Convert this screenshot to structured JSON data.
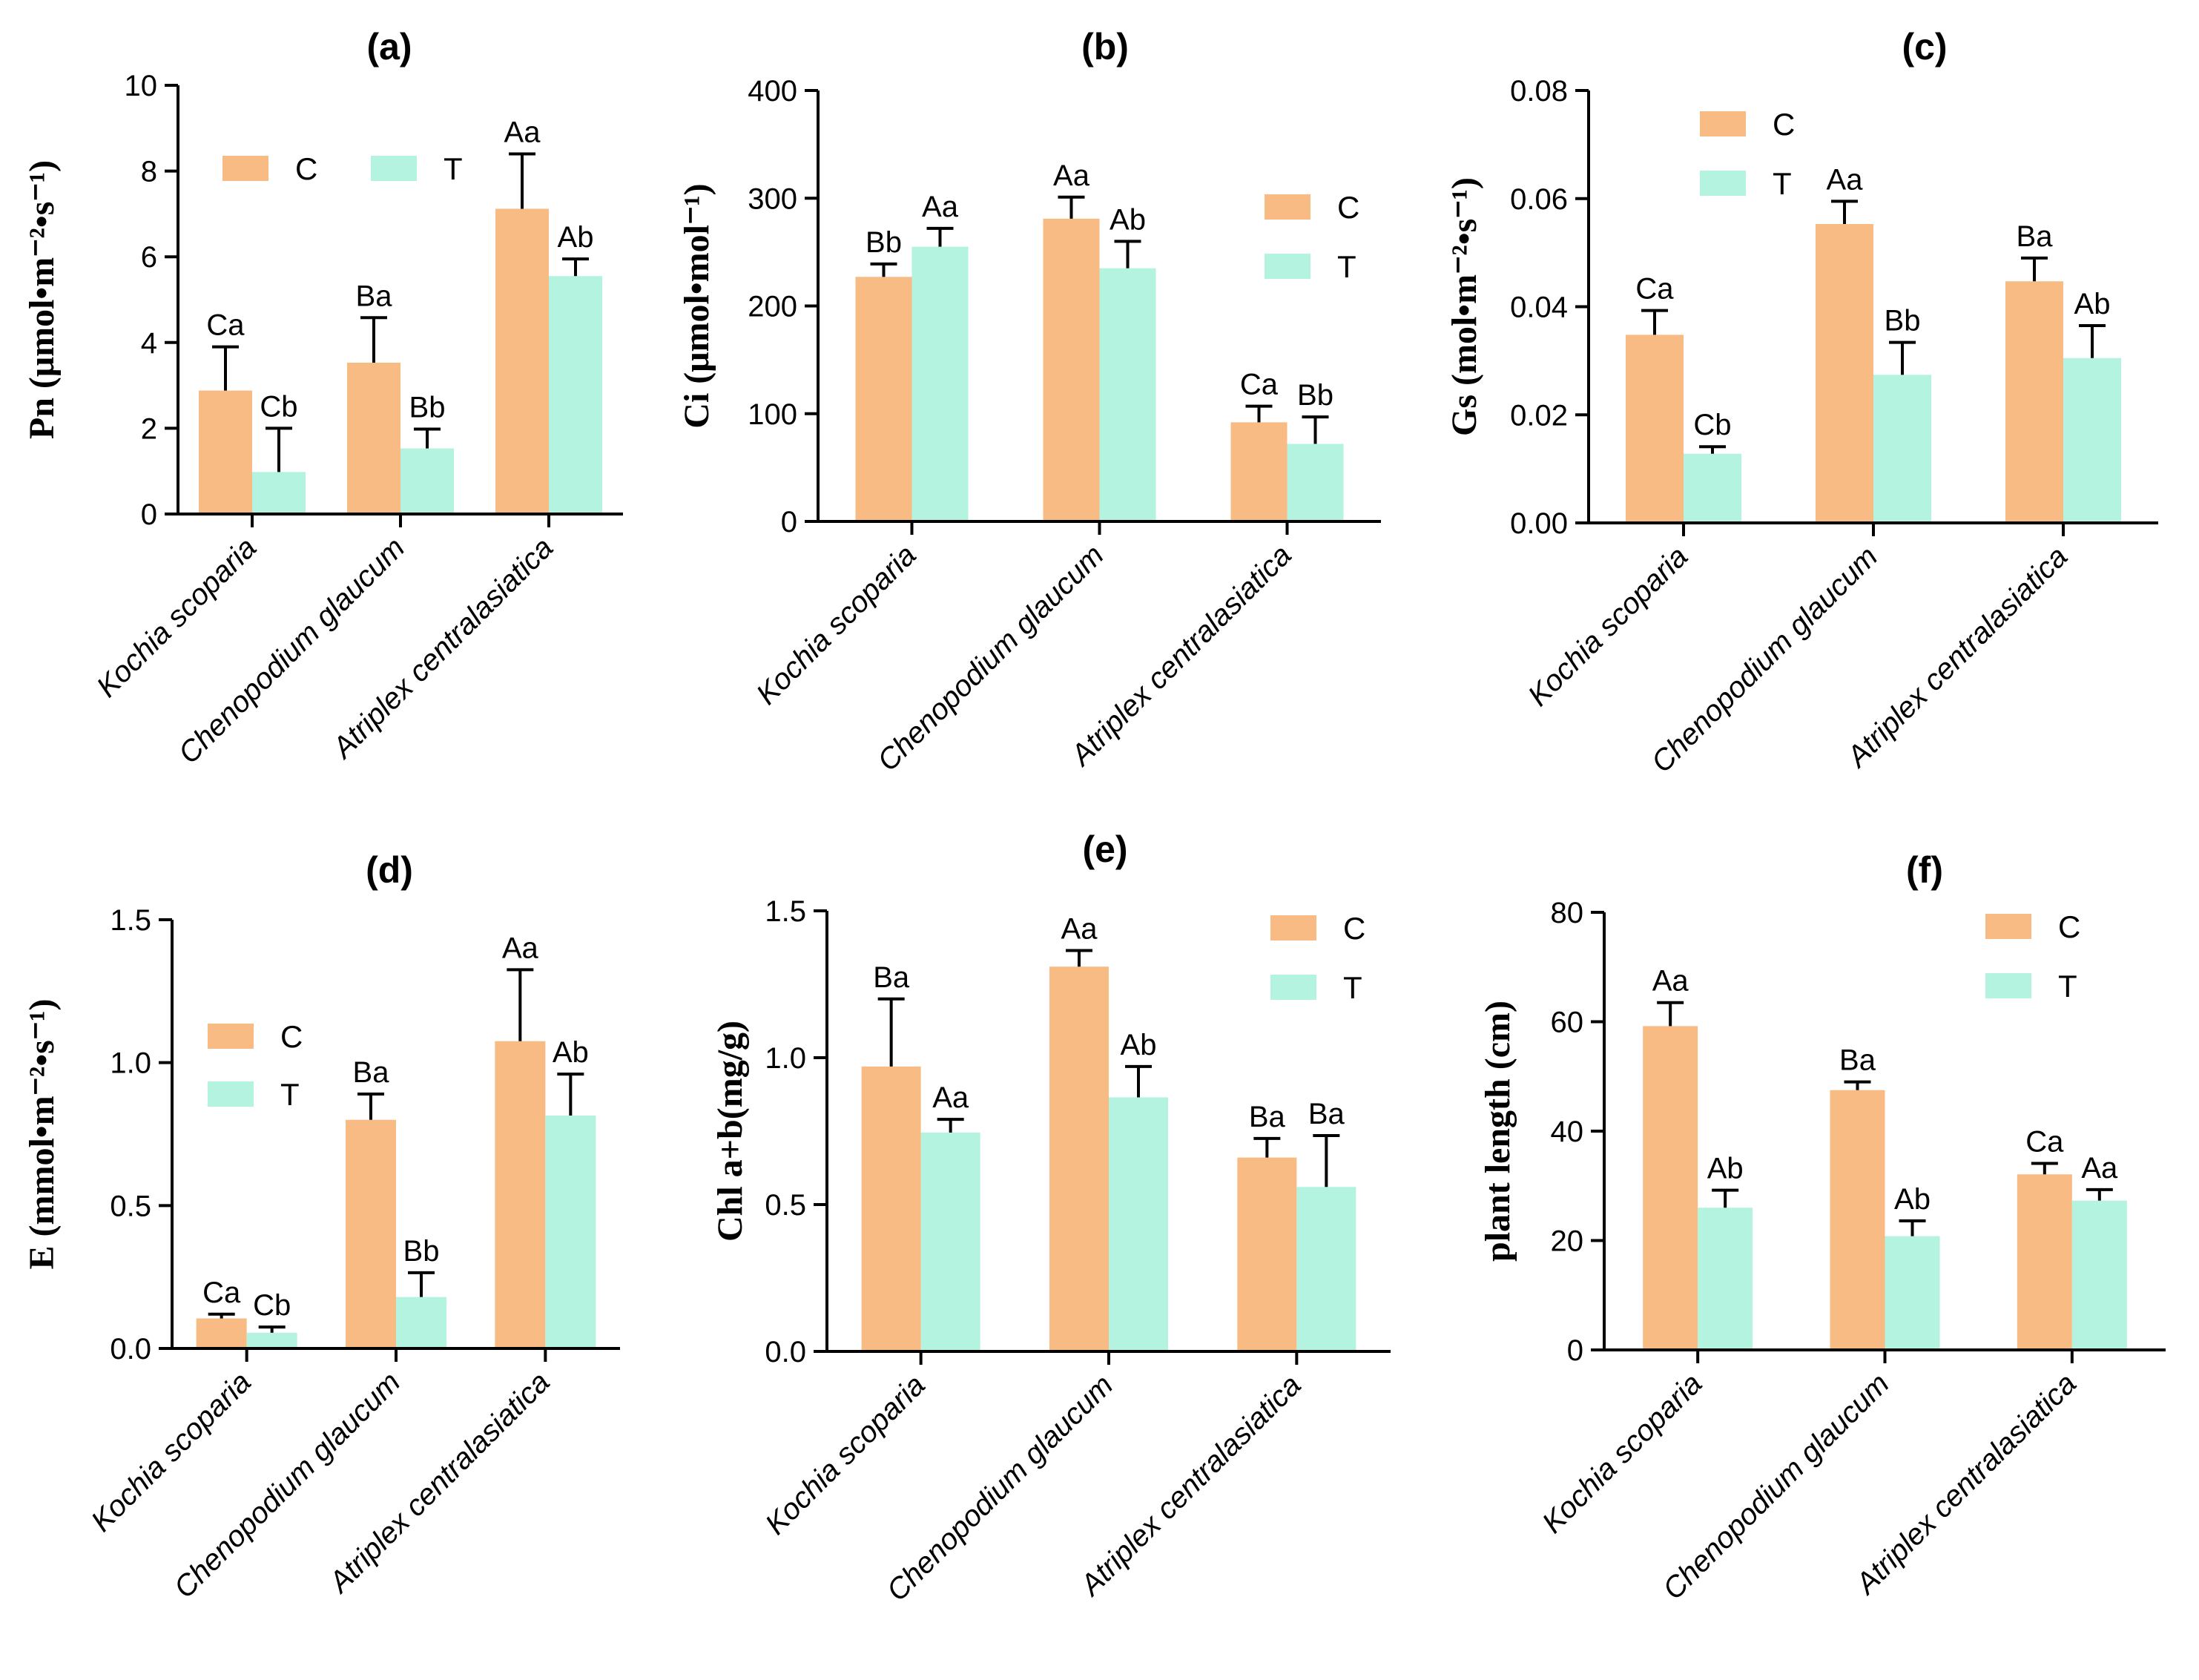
{
  "colors": {
    "C": "#f9bb84",
    "T": "#b3f3df"
  },
  "chart_data": [
    {
      "id": "a",
      "type": "bar",
      "title": "(a)",
      "ylabel": "Pn (μmol•m⁻²•s⁻¹)",
      "ylim": [
        0,
        10
      ],
      "yticks": [
        0,
        2,
        4,
        6,
        8,
        10
      ],
      "tick_labels": [
        "0",
        "2",
        "4",
        "6",
        "8",
        "10"
      ],
      "categories": [
        "Kochia scoparia",
        "Chenopodium glaucum",
        "Atriplex centralasiatica"
      ],
      "series": [
        {
          "name": "C",
          "values": [
            2.88,
            3.53,
            7.12
          ],
          "errors": [
            1.02,
            1.05,
            1.28
          ],
          "labels": [
            "Ca",
            "Ba",
            "Aa"
          ]
        },
        {
          "name": "T",
          "values": [
            0.98,
            1.53,
            5.55
          ],
          "errors": [
            1.02,
            0.45,
            0.4
          ],
          "labels": [
            "Cb",
            "Bb",
            "Ab"
          ]
        }
      ],
      "legend": {
        "labels": [
          "C",
          "T"
        ],
        "layout": "horizontal"
      }
    },
    {
      "id": "b",
      "type": "bar",
      "title": "(b)",
      "ylabel": "Ci (μmol•mol⁻¹)",
      "ylim": [
        0,
        400
      ],
      "yticks": [
        0,
        100,
        200,
        300,
        400
      ],
      "tick_labels": [
        "0",
        "100",
        "200",
        "300",
        "400"
      ],
      "categories": [
        "Kochia scoparia",
        "Chenopodium glaucum",
        "Atriplex centralasiatica"
      ],
      "series": [
        {
          "name": "C",
          "values": [
            227,
            281,
            92
          ],
          "errors": [
            12,
            20,
            15
          ],
          "labels": [
            "Bb",
            "Aa",
            "Ca"
          ]
        },
        {
          "name": "T",
          "values": [
            255,
            235,
            72
          ],
          "errors": [
            17,
            25,
            25
          ],
          "labels": [
            "Aa",
            "Ab",
            "Bb"
          ]
        }
      ],
      "legend": {
        "labels": [
          "C",
          "T"
        ],
        "layout": "vertical"
      }
    },
    {
      "id": "c",
      "type": "bar",
      "title": "(c)",
      "ylabel": "Gs (mol•m⁻²•s⁻¹)",
      "ylim": [
        0,
        0.08
      ],
      "yticks": [
        0,
        0.02,
        0.04,
        0.06,
        0.08
      ],
      "tick_labels": [
        "0.00",
        "0.02",
        "0.04",
        "0.06",
        "0.08"
      ],
      "categories": [
        "Kochia scoparia",
        "Chenopodium glaucum",
        "Atriplex centralasiatica"
      ],
      "series": [
        {
          "name": "C",
          "values": [
            0.0348,
            0.0553,
            0.0447
          ],
          "errors": [
            0.0045,
            0.0042,
            0.0043
          ],
          "labels": [
            "Ca",
            "Aa",
            "Ba"
          ]
        },
        {
          "name": "T",
          "values": [
            0.0128,
            0.0274,
            0.0305
          ],
          "errors": [
            0.0013,
            0.006,
            0.006
          ],
          "labels": [
            "Cb",
            "Bb",
            "Ab"
          ]
        }
      ],
      "legend": {
        "labels": [
          "C",
          "T"
        ],
        "layout": "vertical"
      }
    },
    {
      "id": "d",
      "type": "bar",
      "title": "(d)",
      "ylabel": "E (mmol•m⁻²•s⁻¹)",
      "ylim": [
        0,
        1.5
      ],
      "yticks": [
        0,
        0.5,
        1.0,
        1.5
      ],
      "tick_labels": [
        "0.0",
        "0.5",
        "1.0",
        "1.5"
      ],
      "categories": [
        "Kochia scoparia",
        "Chenopodium glaucum",
        "Atriplex centralasiatica"
      ],
      "series": [
        {
          "name": "C",
          "values": [
            0.105,
            0.8,
            1.075
          ],
          "errors": [
            0.015,
            0.09,
            0.25
          ],
          "labels": [
            "Ca",
            "Ba",
            "Aa"
          ]
        },
        {
          "name": "T",
          "values": [
            0.055,
            0.18,
            0.815
          ],
          "errors": [
            0.02,
            0.085,
            0.145
          ],
          "labels": [
            "Cb",
            "Bb",
            "Ab"
          ]
        }
      ],
      "legend": {
        "labels": [
          "C",
          "T"
        ],
        "layout": "vertical"
      }
    },
    {
      "id": "e",
      "type": "bar",
      "title": "(e)",
      "ylabel": "Chl a+b(mg/g)",
      "ylim": [
        0,
        1.5
      ],
      "yticks": [
        0,
        0.5,
        1.0,
        1.5
      ],
      "tick_labels": [
        "0.0",
        "0.5",
        "1.0",
        "1.5"
      ],
      "categories": [
        "Kochia scoparia",
        "Chenopodium glaucum",
        "Atriplex centralasiatica"
      ],
      "series": [
        {
          "name": "C",
          "values": [
            0.97,
            1.31,
            0.66
          ],
          "errors": [
            0.23,
            0.055,
            0.065
          ],
          "labels": [
            "Ba",
            "Aa",
            "Ba"
          ]
        },
        {
          "name": "T",
          "values": [
            0.745,
            0.865,
            0.56
          ],
          "errors": [
            0.045,
            0.105,
            0.175
          ],
          "labels": [
            "Aa",
            "Ab",
            "Ba"
          ]
        }
      ],
      "legend": {
        "labels": [
          "C",
          "T"
        ],
        "layout": "vertical"
      }
    },
    {
      "id": "f",
      "type": "bar",
      "title": "(f)",
      "ylabel": "plant length (cm)",
      "ylim": [
        0,
        80
      ],
      "yticks": [
        0,
        20,
        40,
        60,
        80
      ],
      "tick_labels": [
        "0",
        "20",
        "40",
        "60",
        "80"
      ],
      "categories": [
        "Kochia scoparia",
        "Chenopodium glaucum",
        "Atriplex centralasiatica"
      ],
      "series": [
        {
          "name": "C",
          "values": [
            59.2,
            47.5,
            32.1
          ],
          "errors": [
            4.3,
            1.5,
            2.0
          ],
          "labels": [
            "Aa",
            "Ba",
            "Ca"
          ]
        },
        {
          "name": "T",
          "values": [
            26.0,
            20.8,
            27.3
          ],
          "errors": [
            3.2,
            2.8,
            2.0
          ],
          "labels": [
            "Ab",
            "Ab",
            "Aa"
          ]
        }
      ],
      "legend": {
        "labels": [
          "C",
          "T"
        ],
        "layout": "vertical"
      }
    }
  ]
}
